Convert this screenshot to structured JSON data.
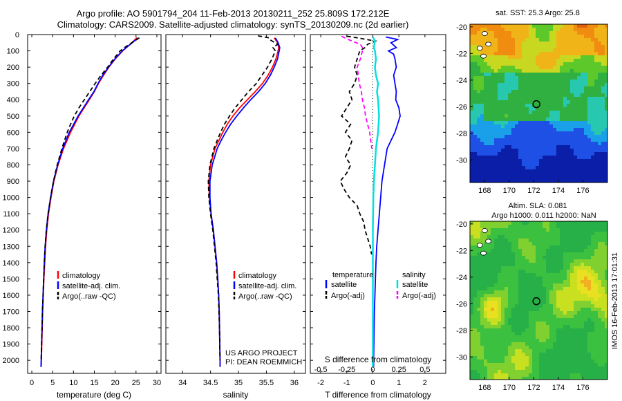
{
  "title": {
    "line1": "Argo profile: AO 5901794_204 11-Feb-2013 20130211_252 25.809S 172.212E",
    "line2": "Climatology: CARS2009. Satellite-adjusted climatology: synTS_20130209.nc (2d earlier)"
  },
  "colors": {
    "climatology": "#ff0000",
    "satellite": "#0000ff",
    "argo": "#000000",
    "sal_satellite": "#00e0e0",
    "sal_argo": "#ff00ff"
  },
  "chart_data": [
    {
      "id": "temperature",
      "type": "line",
      "xlabel": "temperature (deg C)",
      "ylabel": "",
      "xlim": [
        -1,
        31
      ],
      "ylim": [
        2080,
        0
      ],
      "xticks": [
        "0",
        "5",
        "10",
        "15",
        "20",
        "25",
        "30"
      ],
      "xtick_values": [
        0,
        5,
        10,
        15,
        20,
        25,
        30
      ],
      "yticks": [
        "0",
        "100",
        "200",
        "300",
        "400",
        "500",
        "600",
        "700",
        "800",
        "900",
        "1000",
        "1100",
        "1200",
        "1300",
        "1400",
        "1500",
        "1600",
        "1700",
        "1800",
        "1900",
        "2000"
      ],
      "ytick_values": [
        0,
        100,
        200,
        300,
        400,
        500,
        600,
        700,
        800,
        900,
        1000,
        1100,
        1200,
        1300,
        1400,
        1500,
        1600,
        1700,
        1800,
        1900,
        2000
      ],
      "legend": [
        "climatology",
        "satellite-adj. clim.",
        "Argo(..raw -QC)"
      ],
      "series": [
        {
          "name": "climatology",
          "color": "#ff0000",
          "dash": "",
          "depth": [
            20,
            50,
            100,
            150,
            200,
            250,
            300,
            350,
            400,
            500,
            600,
            700,
            800,
            900,
            1000,
            1100,
            1200,
            1300,
            1400,
            1500,
            1600,
            1700,
            1800,
            1900,
            2000,
            2040
          ],
          "values": [
            25.2,
            24.0,
            21.8,
            20.0,
            18.5,
            17.2,
            16.0,
            15.0,
            13.8,
            11.3,
            9.3,
            7.6,
            6.3,
            5.3,
            4.6,
            4.0,
            3.6,
            3.3,
            3.1,
            2.9,
            2.75,
            2.6,
            2.5,
            2.4,
            2.3,
            2.25
          ]
        },
        {
          "name": "satellite-adj. clim.",
          "color": "#0000ff",
          "dash": "",
          "depth": [
            20,
            50,
            100,
            150,
            200,
            250,
            300,
            350,
            400,
            500,
            600,
            700,
            800,
            900,
            1000,
            1100,
            1200,
            1300,
            1400,
            1500,
            1600,
            1700,
            1800,
            1900,
            2000,
            2040
          ],
          "values": [
            25.6,
            24.1,
            21.7,
            19.9,
            18.4,
            17.0,
            15.9,
            14.9,
            13.6,
            11.1,
            9.0,
            7.4,
            6.2,
            5.2,
            4.5,
            3.9,
            3.5,
            3.2,
            3.0,
            2.85,
            2.7,
            2.55,
            2.45,
            2.35,
            2.25,
            2.2
          ]
        },
        {
          "name": "Argo(..raw -QC)",
          "color": "#000000",
          "dash": "6,4",
          "depth": [
            20,
            40,
            70,
            100,
            150,
            200,
            250,
            300,
            350,
            400,
            450,
            500,
            550,
            600,
            700,
            800,
            900,
            1000,
            1100,
            1200,
            1300,
            1400,
            1500,
            1600,
            1700,
            1800,
            1900,
            2000
          ],
          "values": [
            25.8,
            24.6,
            22.8,
            21.2,
            19.6,
            18.2,
            16.6,
            15.2,
            13.9,
            12.6,
            11.3,
            10.2,
            9.3,
            8.5,
            7.2,
            6.1,
            5.2,
            4.5,
            3.9,
            3.5,
            3.2,
            3.0,
            2.85,
            2.7,
            2.55,
            2.45,
            2.35,
            2.25
          ]
        }
      ]
    },
    {
      "id": "salinity",
      "type": "line",
      "xlabel": "salinity",
      "ylabel": "",
      "xlim": [
        33.7,
        36.2
      ],
      "ylim": [
        2080,
        0
      ],
      "xticks": [
        "34",
        "34.5",
        "35",
        "35.5",
        "36"
      ],
      "xtick_values": [
        34,
        34.5,
        35,
        35.5,
        36
      ],
      "legend": [
        "climatology",
        "satellite-adj. clim.",
        "Argo(..raw -QC)"
      ],
      "annotation": [
        "US ARGO PROJECT",
        "PI: DEAN ROEMMICH"
      ],
      "series": [
        {
          "name": "climatology",
          "color": "#ff0000",
          "dash": "",
          "depth": [
            20,
            50,
            80,
            100,
            150,
            200,
            250,
            300,
            350,
            400,
            450,
            500,
            550,
            600,
            650,
            700,
            800,
            900,
            1000,
            1100,
            1200,
            1300,
            1400,
            1500,
            1600,
            1700,
            1800,
            1900,
            2000,
            2040
          ],
          "values": [
            35.64,
            35.7,
            35.72,
            35.71,
            35.67,
            35.61,
            35.53,
            35.43,
            35.3,
            35.16,
            35.02,
            34.9,
            34.8,
            34.72,
            34.65,
            34.58,
            34.5,
            34.47,
            34.48,
            34.51,
            34.55,
            34.58,
            34.61,
            34.63,
            34.645,
            34.655,
            34.66,
            34.665,
            34.67,
            34.67
          ]
        },
        {
          "name": "satellite-adj. clim.",
          "color": "#0000ff",
          "dash": "",
          "depth": [
            20,
            50,
            80,
            100,
            150,
            200,
            250,
            300,
            350,
            400,
            450,
            500,
            550,
            600,
            650,
            700,
            800,
            900,
            1000,
            1100,
            1200,
            1300,
            1400,
            1500,
            1600,
            1700,
            1800,
            1900,
            2000,
            2040
          ],
          "values": [
            35.66,
            35.71,
            35.74,
            35.73,
            35.7,
            35.64,
            35.57,
            35.48,
            35.36,
            35.22,
            35.09,
            34.97,
            34.86,
            34.77,
            34.69,
            34.62,
            34.53,
            34.49,
            34.49,
            34.51,
            34.55,
            34.58,
            34.61,
            34.63,
            34.645,
            34.655,
            34.66,
            34.665,
            34.67,
            34.67
          ]
        },
        {
          "name": "Argo(..raw -QC)",
          "color": "#000000",
          "dash": "6,4",
          "depth": [
            8,
            20,
            35,
            60,
            80,
            100,
            150,
            200,
            250,
            300,
            350,
            400,
            450,
            500,
            550,
            600,
            650,
            700,
            800,
            900,
            1000,
            1100,
            1200,
            1300,
            1400,
            1500,
            1600,
            1700,
            1800,
            1900,
            2000
          ],
          "values": [
            35.35,
            35.55,
            35.58,
            35.7,
            35.62,
            35.66,
            35.6,
            35.52,
            35.42,
            35.32,
            35.18,
            35.06,
            34.94,
            34.84,
            34.75,
            34.68,
            34.62,
            34.56,
            34.49,
            34.46,
            34.47,
            34.5,
            34.54,
            34.57,
            34.6,
            34.62,
            34.64,
            34.65,
            34.66,
            34.665,
            34.67
          ]
        }
      ]
    },
    {
      "id": "difference",
      "type": "line",
      "xlabel": "T difference from climatology",
      "x2label": "S difference from climatology",
      "xlim": [
        -2.4,
        2.8
      ],
      "ylim": [
        2080,
        0
      ],
      "xticks": [
        "-2",
        "-1",
        "0",
        "1",
        "2"
      ],
      "xtick_values": [
        -2,
        -1,
        0,
        1,
        2
      ],
      "x2ticks": [
        "-0.5",
        "-0.25",
        "0",
        "0.25",
        "0.5"
      ],
      "x2tick_values": [
        -0.5,
        -0.25,
        0,
        0.25,
        0.5
      ],
      "legend": {
        "temperature": "temperature",
        "salinity": "salinity",
        "items": [
          "satellite",
          "Argo(-adj)",
          "satellite",
          "Argo(-adj)"
        ]
      },
      "series": [
        {
          "name": "T satellite",
          "color": "#0000ff",
          "dash": "",
          "depth": [
            15,
            30,
            50,
            80,
            100,
            120,
            150,
            200,
            250,
            300,
            350,
            400,
            450,
            500,
            550,
            600,
            650,
            700,
            800,
            900,
            1000,
            1100,
            1200,
            1300,
            1400,
            1500,
            1600,
            1700,
            1800,
            1900,
            2000,
            2040
          ],
          "values": [
            0.5,
            0.95,
            0.7,
            0.9,
            0.6,
            0.8,
            0.85,
            0.9,
            0.8,
            0.85,
            0.9,
            0.88,
            1.0,
            1.05,
            0.95,
            0.85,
            0.7,
            0.55,
            0.45,
            0.35,
            0.3,
            0.25,
            0.2,
            0.15,
            0.12,
            0.1,
            0.08,
            0.06,
            0.05,
            0.04,
            0.03,
            0.03
          ]
        },
        {
          "name": "T Argo(-adj)",
          "color": "#000000",
          "dash": "6,4",
          "depth": [
            10,
            20,
            40,
            60,
            80,
            100,
            150,
            200,
            250,
            300,
            350,
            400,
            450,
            500,
            550,
            600,
            650,
            700,
            750,
            800,
            850,
            900,
            950,
            1000,
            1050,
            1100,
            1150,
            1200,
            1250,
            1300,
            1350
          ],
          "values": [
            -1.0,
            -0.6,
            0.1,
            -0.2,
            -0.3,
            -0.5,
            -0.6,
            -0.7,
            -0.6,
            -0.7,
            -0.9,
            -0.8,
            -1.0,
            -1.2,
            -0.85,
            -1.05,
            -0.8,
            -0.9,
            -1.05,
            -0.85,
            -1.0,
            -1.25,
            -1.1,
            -0.9,
            -0.6,
            -0.5,
            -0.35,
            -0.3,
            -0.2,
            -0.1,
            -0.05
          ]
        },
        {
          "name": "S satellite",
          "color": "#00e0e0",
          "dash": "",
          "depth": [
            15,
            40,
            80,
            100,
            150,
            200,
            250,
            300,
            350,
            400,
            500,
            600,
            700,
            800,
            900,
            1000,
            1200,
            1400,
            1600,
            1800,
            2000,
            2040
          ],
          "values": [
            0.0,
            0.02,
            0.01,
            0.02,
            0.03,
            0.02,
            0.03,
            0.05,
            0.04,
            0.05,
            0.06,
            0.05,
            0.03,
            0.02,
            0.01,
            0.005,
            0.0,
            0.0,
            0.0,
            0.0,
            0.0,
            0.0
          ]
        },
        {
          "name": "S Argo(-adj)",
          "color": "#ff00ff",
          "dash": "6,4",
          "depth": [
            10,
            20,
            40,
            60,
            80,
            100,
            150,
            200,
            250,
            300,
            350,
            400,
            450,
            500,
            550,
            600,
            650,
            700
          ],
          "values": [
            -0.3,
            -0.27,
            -0.2,
            -0.12,
            -0.1,
            -0.1,
            -0.12,
            -0.15,
            -0.14,
            -0.13,
            -0.11,
            -0.1,
            -0.08,
            -0.07,
            -0.05,
            -0.03,
            -0.02,
            -0.01
          ]
        }
      ]
    },
    {
      "id": "sst_map",
      "type": "heatmap",
      "title": "sat. SST: 25.3  Argo: 25.8",
      "xticks": [
        "168",
        "170",
        "172",
        "174",
        "176"
      ],
      "xtick_values": [
        168,
        170,
        172,
        174,
        176
      ],
      "yticks": [
        "-20",
        "-22",
        "-24",
        "-26",
        "-28",
        "-30"
      ],
      "ytick_values": [
        -20,
        -22,
        -24,
        -26,
        -28,
        -30
      ],
      "xlim": [
        166.8,
        178
      ],
      "ylim": [
        -31.7,
        -19.8
      ],
      "marker": {
        "lon": 172.212,
        "lat": -25.809
      }
    },
    {
      "id": "sla_map",
      "type": "heatmap",
      "title": "Altim. SLA: 0.081",
      "subtitle": "Argo h1000: 0.011 h2000: NaN",
      "xticks": [
        "168",
        "170",
        "172",
        "174",
        "176"
      ],
      "xtick_values": [
        168,
        170,
        172,
        174,
        176
      ],
      "yticks": [
        "-20",
        "-22",
        "-24",
        "-26",
        "-28",
        "-30"
      ],
      "ytick_values": [
        -20,
        -22,
        -24,
        -26,
        -28,
        -30
      ],
      "xlim": [
        166.8,
        178
      ],
      "ylim": [
        -31.7,
        -19.8
      ],
      "marker": {
        "lon": 172.212,
        "lat": -25.809
      }
    }
  ],
  "footer": "IMOS 16-Feb-2013 17:01:31"
}
